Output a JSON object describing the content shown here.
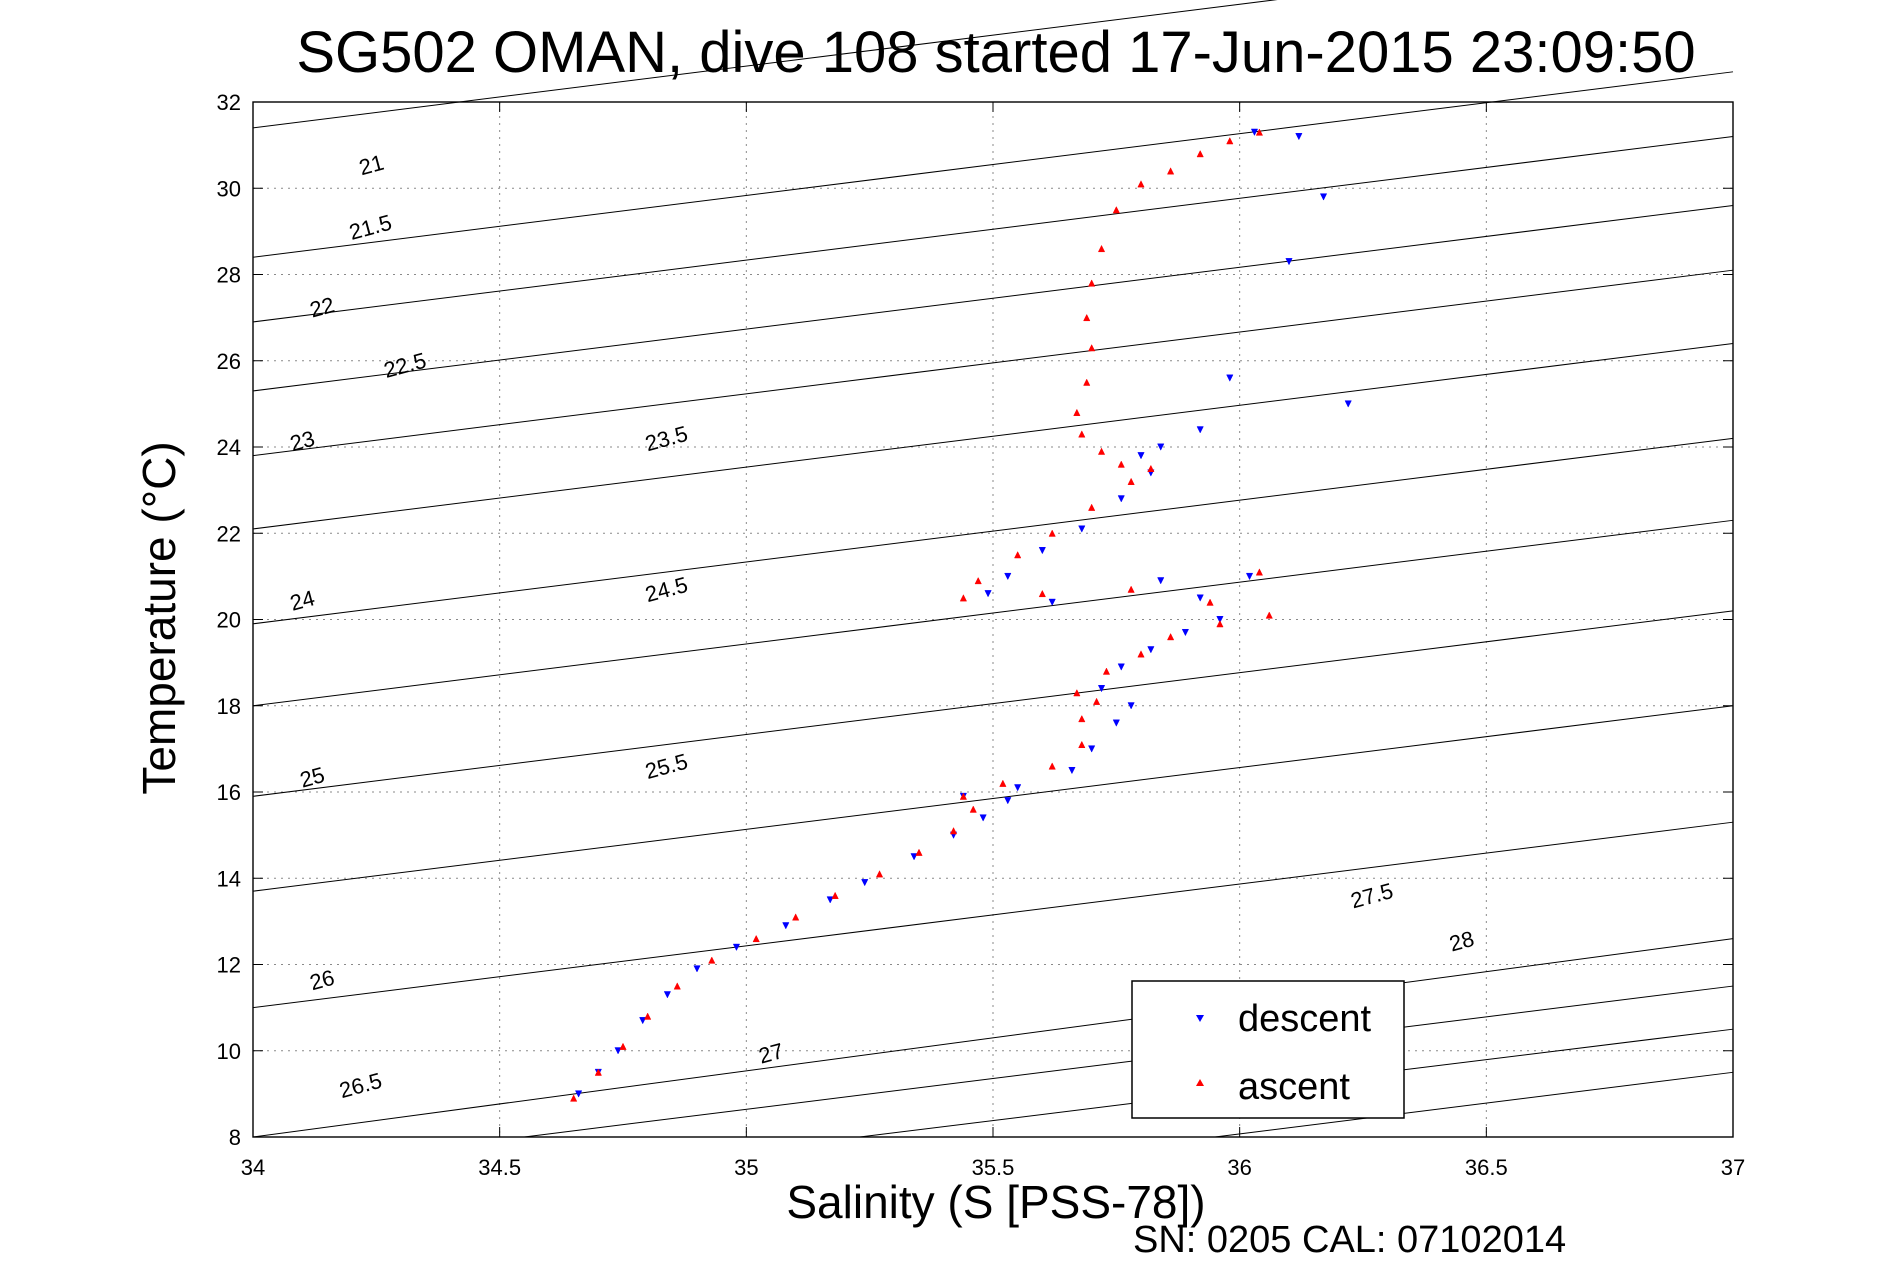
{
  "chart_data": {
    "type": "scatter",
    "title": "SG502 OMAN, dive 108 started 17-Jun-2015 23:09:50",
    "xlabel": "Salinity (S [PSS-78])",
    "ylabel": "Temperature (°C)",
    "xlim": [
      34,
      37
    ],
    "ylim": [
      8,
      32
    ],
    "xticks": [
      34,
      34.5,
      35,
      35.5,
      36,
      36.5,
      37
    ],
    "yticks": [
      8,
      10,
      12,
      14,
      16,
      18,
      20,
      22,
      24,
      26,
      28,
      30,
      32
    ],
    "grid": true,
    "legend_position": "bottom-right",
    "footer": "SN: 0205  CAL: 07102014",
    "series": [
      {
        "name": "descent",
        "color": "#0000ff",
        "marker": "triangle-down",
        "points": [
          [
            34.66,
            9.0
          ],
          [
            34.7,
            9.5
          ],
          [
            34.74,
            10.0
          ],
          [
            34.79,
            10.7
          ],
          [
            34.84,
            11.3
          ],
          [
            34.9,
            11.9
          ],
          [
            34.98,
            12.4
          ],
          [
            35.08,
            12.9
          ],
          [
            35.17,
            13.5
          ],
          [
            35.24,
            13.9
          ],
          [
            35.34,
            14.5
          ],
          [
            35.42,
            15.0
          ],
          [
            35.48,
            15.4
          ],
          [
            35.53,
            15.8
          ],
          [
            35.44,
            15.9
          ],
          [
            35.55,
            16.1
          ],
          [
            35.66,
            16.5
          ],
          [
            35.7,
            17.0
          ],
          [
            35.75,
            17.6
          ],
          [
            35.78,
            18.0
          ],
          [
            35.72,
            18.4
          ],
          [
            35.76,
            18.9
          ],
          [
            35.82,
            19.3
          ],
          [
            35.89,
            19.7
          ],
          [
            35.96,
            20.0
          ],
          [
            35.92,
            20.5
          ],
          [
            36.02,
            21.0
          ],
          [
            35.84,
            20.9
          ],
          [
            35.62,
            20.4
          ],
          [
            35.49,
            20.6
          ],
          [
            35.53,
            21.0
          ],
          [
            35.6,
            21.6
          ],
          [
            35.68,
            22.1
          ],
          [
            35.76,
            22.8
          ],
          [
            35.82,
            23.4
          ],
          [
            35.8,
            23.8
          ],
          [
            35.84,
            24.0
          ],
          [
            35.92,
            24.4
          ],
          [
            35.98,
            25.6
          ],
          [
            36.22,
            25.0
          ],
          [
            36.1,
            28.3
          ],
          [
            36.17,
            29.8
          ],
          [
            36.12,
            31.2
          ],
          [
            36.03,
            31.3
          ]
        ]
      },
      {
        "name": "ascent",
        "color": "#ff0000",
        "marker": "triangle-up",
        "points": [
          [
            34.65,
            8.9
          ],
          [
            34.7,
            9.5
          ],
          [
            34.75,
            10.1
          ],
          [
            34.8,
            10.8
          ],
          [
            34.86,
            11.5
          ],
          [
            34.93,
            12.1
          ],
          [
            35.02,
            12.6
          ],
          [
            35.1,
            13.1
          ],
          [
            35.18,
            13.6
          ],
          [
            35.27,
            14.1
          ],
          [
            35.35,
            14.6
          ],
          [
            35.42,
            15.1
          ],
          [
            35.46,
            15.6
          ],
          [
            35.44,
            15.9
          ],
          [
            35.52,
            16.2
          ],
          [
            35.62,
            16.6
          ],
          [
            35.68,
            17.1
          ],
          [
            35.68,
            17.7
          ],
          [
            35.71,
            18.1
          ],
          [
            35.67,
            18.3
          ],
          [
            35.73,
            18.8
          ],
          [
            35.8,
            19.2
          ],
          [
            35.86,
            19.6
          ],
          [
            35.96,
            19.9
          ],
          [
            36.06,
            20.1
          ],
          [
            35.94,
            20.4
          ],
          [
            36.04,
            21.1
          ],
          [
            35.78,
            20.7
          ],
          [
            35.6,
            20.6
          ],
          [
            35.44,
            20.5
          ],
          [
            35.47,
            20.9
          ],
          [
            35.55,
            21.5
          ],
          [
            35.62,
            22.0
          ],
          [
            35.7,
            22.6
          ],
          [
            35.78,
            23.2
          ],
          [
            35.82,
            23.5
          ],
          [
            35.76,
            23.6
          ],
          [
            35.72,
            23.9
          ],
          [
            35.68,
            24.3
          ],
          [
            35.67,
            24.8
          ],
          [
            35.69,
            25.5
          ],
          [
            35.7,
            26.3
          ],
          [
            35.69,
            27.0
          ],
          [
            35.7,
            27.8
          ],
          [
            35.72,
            28.6
          ],
          [
            35.75,
            29.5
          ],
          [
            35.8,
            30.1
          ],
          [
            35.86,
            30.4
          ],
          [
            35.92,
            30.8
          ],
          [
            35.98,
            31.1
          ],
          [
            36.04,
            31.3
          ]
        ]
      }
    ],
    "density_contours": {
      "labels": [
        "21",
        "21.5",
        "22",
        "22.5",
        "23",
        "23.5",
        "24",
        "24.5",
        "25",
        "25.5",
        "26",
        "26.5",
        "27",
        "27.5",
        "28"
      ]
    }
  }
}
